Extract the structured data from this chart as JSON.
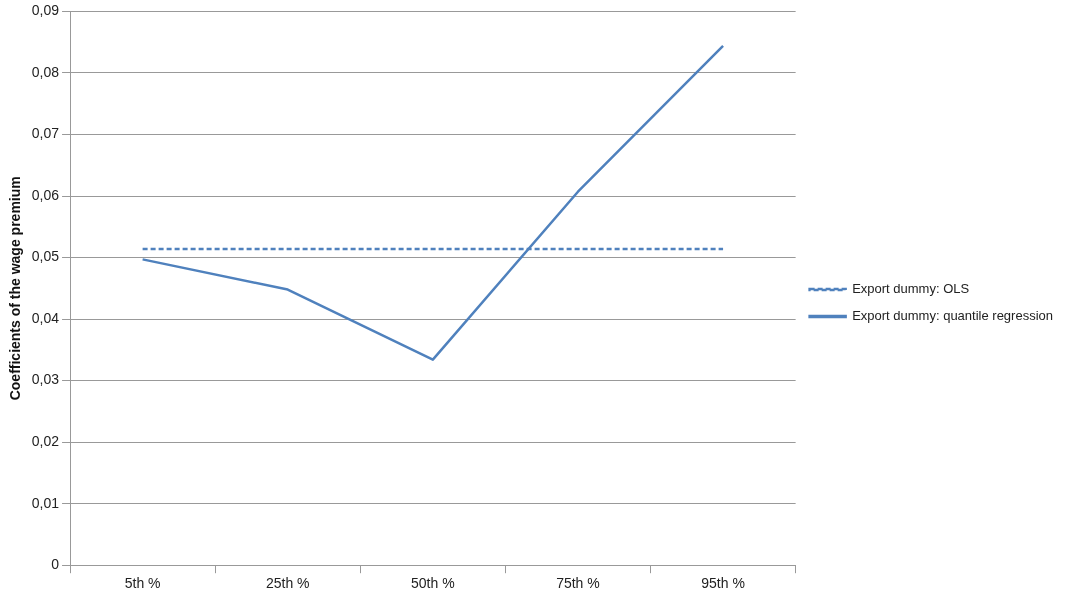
{
  "chart_data": {
    "type": "line",
    "ylabel": "Coefficients of the wage premium",
    "categories": [
      "5th %",
      "25th %",
      "50th %",
      "75th %",
      "95th %"
    ],
    "series": [
      {
        "name": "Export dummy: OLS",
        "color": "#4f81bd",
        "line_style": "dashed",
        "values": [
          0.0514,
          0.0514,
          0.0514,
          0.0514,
          0.0514
        ]
      },
      {
        "name": "Export dummy: quantile regression",
        "color": "#4f81bd",
        "line_style": "solid",
        "values": [
          0.0497,
          0.0448,
          0.0334,
          0.0607,
          0.0844
        ]
      }
    ],
    "ylim": [
      0,
      0.09
    ],
    "yticks": [
      0,
      {
        "value": 0.01,
        "label": "0,01"
      },
      {
        "value": 0.02,
        "label": "0,02"
      },
      {
        "value": 0.03,
        "label": "0,03"
      },
      {
        "value": 0.04,
        "label": "0,04"
      },
      {
        "value": 0.05,
        "label": "0,05"
      },
      {
        "value": 0.06,
        "label": "0,06"
      },
      {
        "value": 0.07,
        "label": "0,07"
      },
      {
        "value": 0.08,
        "label": "0,08"
      },
      {
        "value": 0.09,
        "label": "0,09"
      }
    ],
    "grid": "y",
    "legend": "right",
    "marker": "none"
  }
}
